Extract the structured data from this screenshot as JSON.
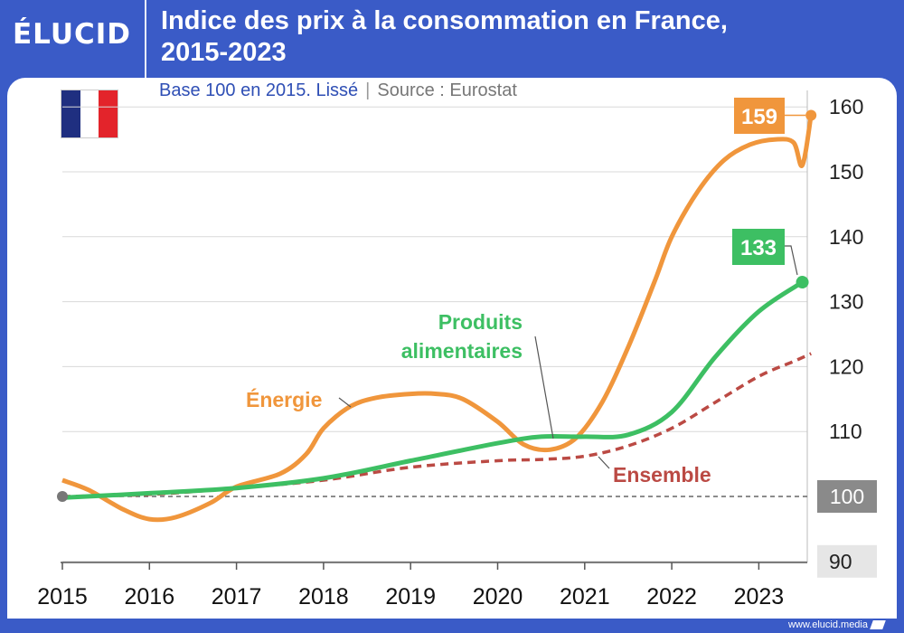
{
  "header": {
    "logo": "ÉLUCID",
    "title_line1": "Indice des prix à la consommation en France,",
    "title_line2": "2015-2023"
  },
  "subtitle": {
    "base": "Base 100 en 2015. Lissé",
    "separator": "|",
    "source": "Source : Eurostat"
  },
  "footer": {
    "url": "www.elucid.media"
  },
  "colors": {
    "brand": "#3a5bc7",
    "energie": "#f0963c",
    "alimentaires": "#3dbf63",
    "ensemble": "#bb4a44",
    "reference": "#666666"
  },
  "chart_data": {
    "type": "line",
    "xlim": [
      2015,
      2023.6
    ],
    "ylim": [
      87,
      163
    ],
    "x_ticks": [
      2015,
      2016,
      2017,
      2018,
      2019,
      2020,
      2021,
      2022,
      2023
    ],
    "y_ticks": [
      90,
      100,
      110,
      120,
      130,
      140,
      150,
      160
    ],
    "y_tick_labels": [
      "90",
      "100",
      "110",
      "120",
      "130",
      "140",
      "150",
      "160"
    ],
    "grid": "horizontal",
    "reference_line": 100,
    "series": [
      {
        "name": "Énergie",
        "color": "#f0963c",
        "end_label": "159",
        "x": [
          2015,
          2015.3,
          2015.7,
          2016,
          2016.3,
          2016.7,
          2017,
          2017.5,
          2017.8,
          2018,
          2018.3,
          2018.6,
          2019,
          2019.3,
          2019.6,
          2020,
          2020.3,
          2020.6,
          2020.9,
          2021.2,
          2021.5,
          2021.8,
          2022,
          2022.3,
          2022.6,
          2022.9,
          2023.2,
          2023.4,
          2023.5,
          2023.6
        ],
        "y": [
          102.5,
          101,
          98,
          96.5,
          96.8,
          99,
          101.5,
          103.5,
          106.5,
          110.5,
          113.8,
          115.2,
          115.8,
          115.8,
          115,
          111.5,
          108,
          107.2,
          109,
          114.5,
          123,
          133,
          140,
          147,
          151.8,
          154.2,
          155,
          154.5,
          151,
          158.7
        ]
      },
      {
        "name": "Produits alimentaires",
        "color": "#3dbf63",
        "end_label": "133",
        "x": [
          2015,
          2016,
          2017,
          2018,
          2019,
          2020,
          2020.5,
          2021,
          2021.5,
          2022,
          2022.5,
          2023,
          2023.5
        ],
        "y": [
          99.8,
          100.5,
          101.3,
          102.8,
          105.5,
          108.2,
          109.2,
          109.2,
          109.5,
          113,
          121.5,
          128.5,
          133
        ]
      },
      {
        "name": "Ensemble",
        "color": "#bb4a44",
        "x": [
          2015,
          2016,
          2017,
          2018,
          2019,
          2020,
          2020.5,
          2021,
          2021.5,
          2022,
          2022.5,
          2023,
          2023.4,
          2023.6
        ],
        "y": [
          100,
          100.3,
          101.3,
          102.5,
          104.5,
          105.5,
          105.7,
          106.2,
          107.8,
          110.5,
          114.5,
          118.5,
          120.8,
          122
        ]
      }
    ]
  }
}
